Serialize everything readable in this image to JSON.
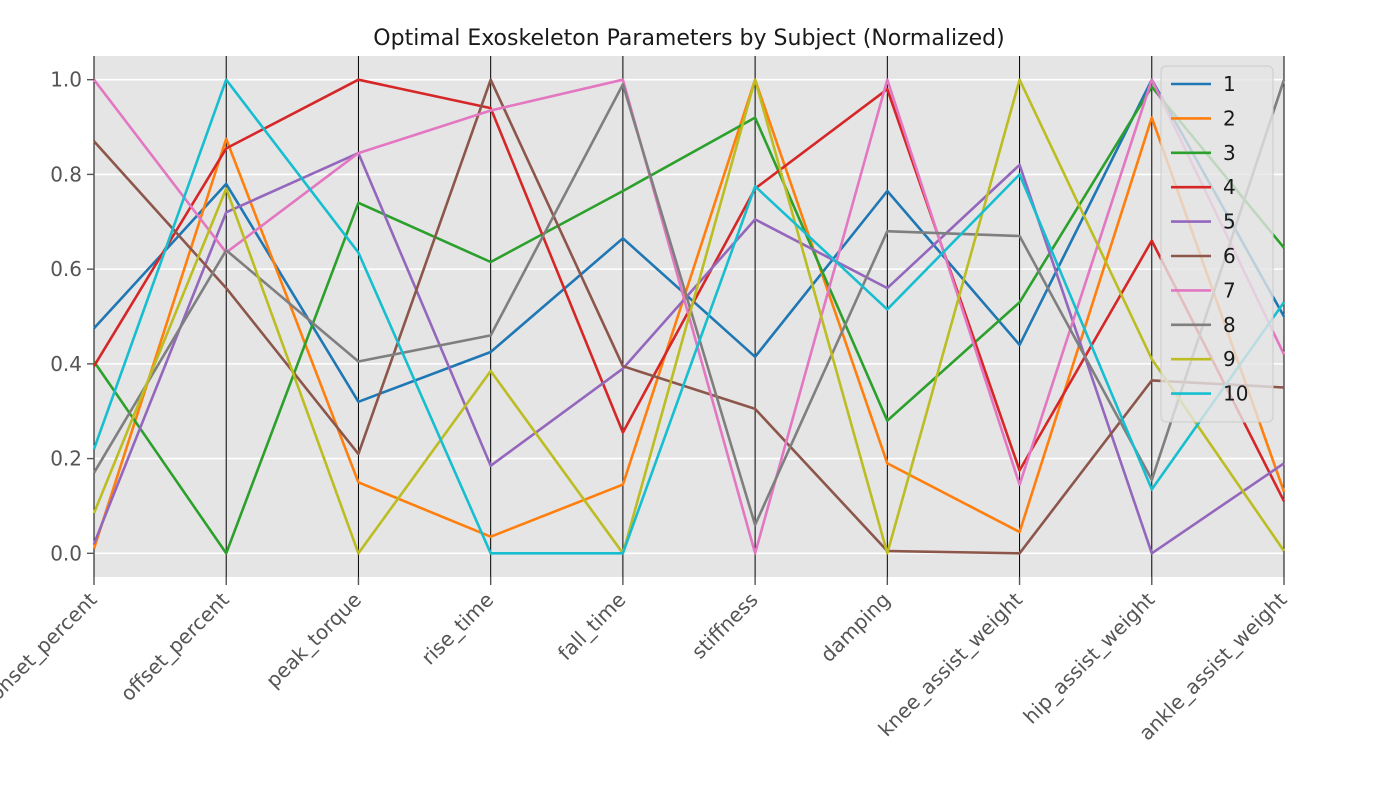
{
  "chart_data": {
    "type": "line",
    "subtype": "parallel-coordinates",
    "title": "Optimal Exoskeleton Parameters by Subject (Normalized)",
    "xlabel": "",
    "ylabel": "",
    "categories": [
      "onset_percent",
      "offset_percent",
      "peak_torque",
      "rise_time",
      "fall_time",
      "stiffness",
      "damping",
      "knee_assist_weight",
      "hip_assist_weight",
      "ankle_assist_weight"
    ],
    "ylim": [
      -0.05,
      1.05
    ],
    "yticks": [
      0.0,
      0.2,
      0.4,
      0.6,
      0.8,
      1.0
    ],
    "ytick_labels": [
      "0.0",
      "0.2",
      "0.4",
      "0.6",
      "0.8",
      "1.0"
    ],
    "grid": true,
    "legend_position": "top-right",
    "background": "#e5e5e5",
    "series": [
      {
        "name": "1",
        "color": "#1f77b4",
        "values": [
          0.475,
          0.78,
          0.32,
          0.425,
          0.665,
          0.415,
          0.765,
          0.44,
          1.0,
          0.5
        ]
      },
      {
        "name": "2",
        "color": "#ff7f0e",
        "values": [
          0.01,
          0.875,
          0.15,
          0.035,
          0.145,
          1.0,
          0.19,
          0.045,
          0.92,
          0.13
        ]
      },
      {
        "name": "3",
        "color": "#2ca02c",
        "values": [
          0.405,
          0.0,
          0.74,
          0.615,
          0.765,
          0.92,
          0.28,
          0.53,
          0.985,
          0.645
        ]
      },
      {
        "name": "4",
        "color": "#d62728",
        "values": [
          0.395,
          0.855,
          1.0,
          0.94,
          0.255,
          0.77,
          0.98,
          0.175,
          0.66,
          0.11
        ]
      },
      {
        "name": "5",
        "color": "#9467bd",
        "values": [
          0.02,
          0.72,
          0.845,
          0.185,
          0.39,
          0.705,
          0.56,
          0.82,
          0.0,
          0.19
        ]
      },
      {
        "name": "6",
        "color": "#8c564b",
        "values": [
          0.87,
          0.56,
          0.21,
          1.0,
          0.395,
          0.305,
          0.005,
          0.0,
          0.365,
          0.35
        ]
      },
      {
        "name": "7",
        "color": "#e377c2",
        "values": [
          1.0,
          0.635,
          0.845,
          0.935,
          1.0,
          0.0,
          1.0,
          0.145,
          1.0,
          0.42
        ]
      },
      {
        "name": "8",
        "color": "#7f7f7f",
        "values": [
          0.17,
          0.64,
          0.405,
          0.46,
          0.99,
          0.06,
          0.68,
          0.67,
          0.155,
          1.0
        ]
      },
      {
        "name": "9",
        "color": "#bcbd22",
        "values": [
          0.085,
          0.77,
          0.0,
          0.385,
          0.0,
          1.0,
          0.0,
          1.0,
          0.41,
          0.005
        ]
      },
      {
        "name": "10",
        "color": "#17becf",
        "values": [
          0.22,
          1.0,
          0.635,
          0.0,
          0.0,
          0.775,
          0.515,
          0.8,
          0.135,
          0.53
        ]
      }
    ]
  }
}
